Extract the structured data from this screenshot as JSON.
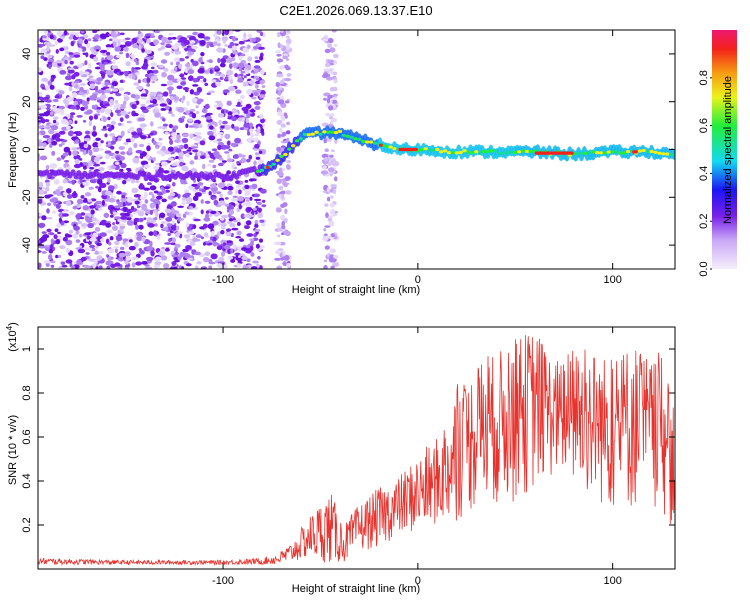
{
  "title": "C2E1.2026.069.13.37.E10",
  "colors": {
    "line": "#e8322d",
    "axis": "#000000"
  },
  "chart_data": [
    {
      "type": "heatmap",
      "title": "C2E1.2026.069.13.37.E10",
      "xlabel": "Height of straight line (km)",
      "ylabel": "Frequency (Hz)",
      "xlim": [
        -195,
        132
      ],
      "ylim": [
        -50,
        50
      ],
      "x_ticks": [
        -100,
        0,
        100
      ],
      "y_ticks": [
        -40,
        -20,
        0,
        20,
        40
      ],
      "colorbar": {
        "label": "Normalized spectral amplitude",
        "range": [
          0,
          1
        ],
        "ticks": [
          "0.0",
          "0.2",
          "0.4",
          "0.6",
          "0.8"
        ]
      },
      "ridge": {
        "x": [
          -195,
          -150,
          -120,
          -105,
          -95,
          -85,
          -78,
          -72,
          -65,
          -58,
          -50,
          -40,
          -30,
          -20,
          -10,
          0,
          20,
          40,
          60,
          80,
          100,
          120,
          132
        ],
        "y": [
          -10,
          -11,
          -11,
          -11,
          -11,
          -9,
          -8,
          -5,
          1,
          6,
          7,
          7,
          4,
          2,
          0,
          0,
          -1,
          -1,
          -1,
          -2,
          -1,
          -1,
          -2
        ]
      }
    },
    {
      "type": "line",
      "xlabel": "Height of straight line (km)",
      "ylabel": "SNR (10 * v/v)",
      "y_scale_label": "(x10",
      "y_scale_exp": "4",
      "xlim": [
        -195,
        132
      ],
      "ylim": [
        0,
        1.1
      ],
      "x_ticks": [
        -100,
        0,
        100
      ],
      "y_ticks": [
        0.2,
        0.4,
        0.6,
        0.8,
        1
      ],
      "envelope": {
        "x": [
          -195,
          -150,
          -100,
          -80,
          -72,
          -65,
          -55,
          -45,
          -38,
          -30,
          -20,
          -10,
          0,
          10,
          20,
          25,
          30,
          40,
          50,
          60,
          70,
          80,
          90,
          100,
          110,
          120,
          125,
          132
        ],
        "base": [
          0.02,
          0.02,
          0.02,
          0.02,
          0.02,
          0.03,
          0.05,
          0.02,
          0.03,
          0.08,
          0.1,
          0.15,
          0.17,
          0.2,
          0.2,
          0.25,
          0.25,
          0.28,
          0.3,
          0.35,
          0.42,
          0.35,
          0.3,
          0.25,
          0.25,
          0.28,
          0.25,
          0.15
        ],
        "peak": [
          0.05,
          0.04,
          0.04,
          0.05,
          0.07,
          0.12,
          0.25,
          0.36,
          0.2,
          0.3,
          0.37,
          0.42,
          0.52,
          0.6,
          0.85,
          0.85,
          0.95,
          0.98,
          1.05,
          1.1,
          0.95,
          1.0,
          1.0,
          0.95,
          1.05,
          0.95,
          1.0,
          0.7
        ]
      }
    }
  ]
}
